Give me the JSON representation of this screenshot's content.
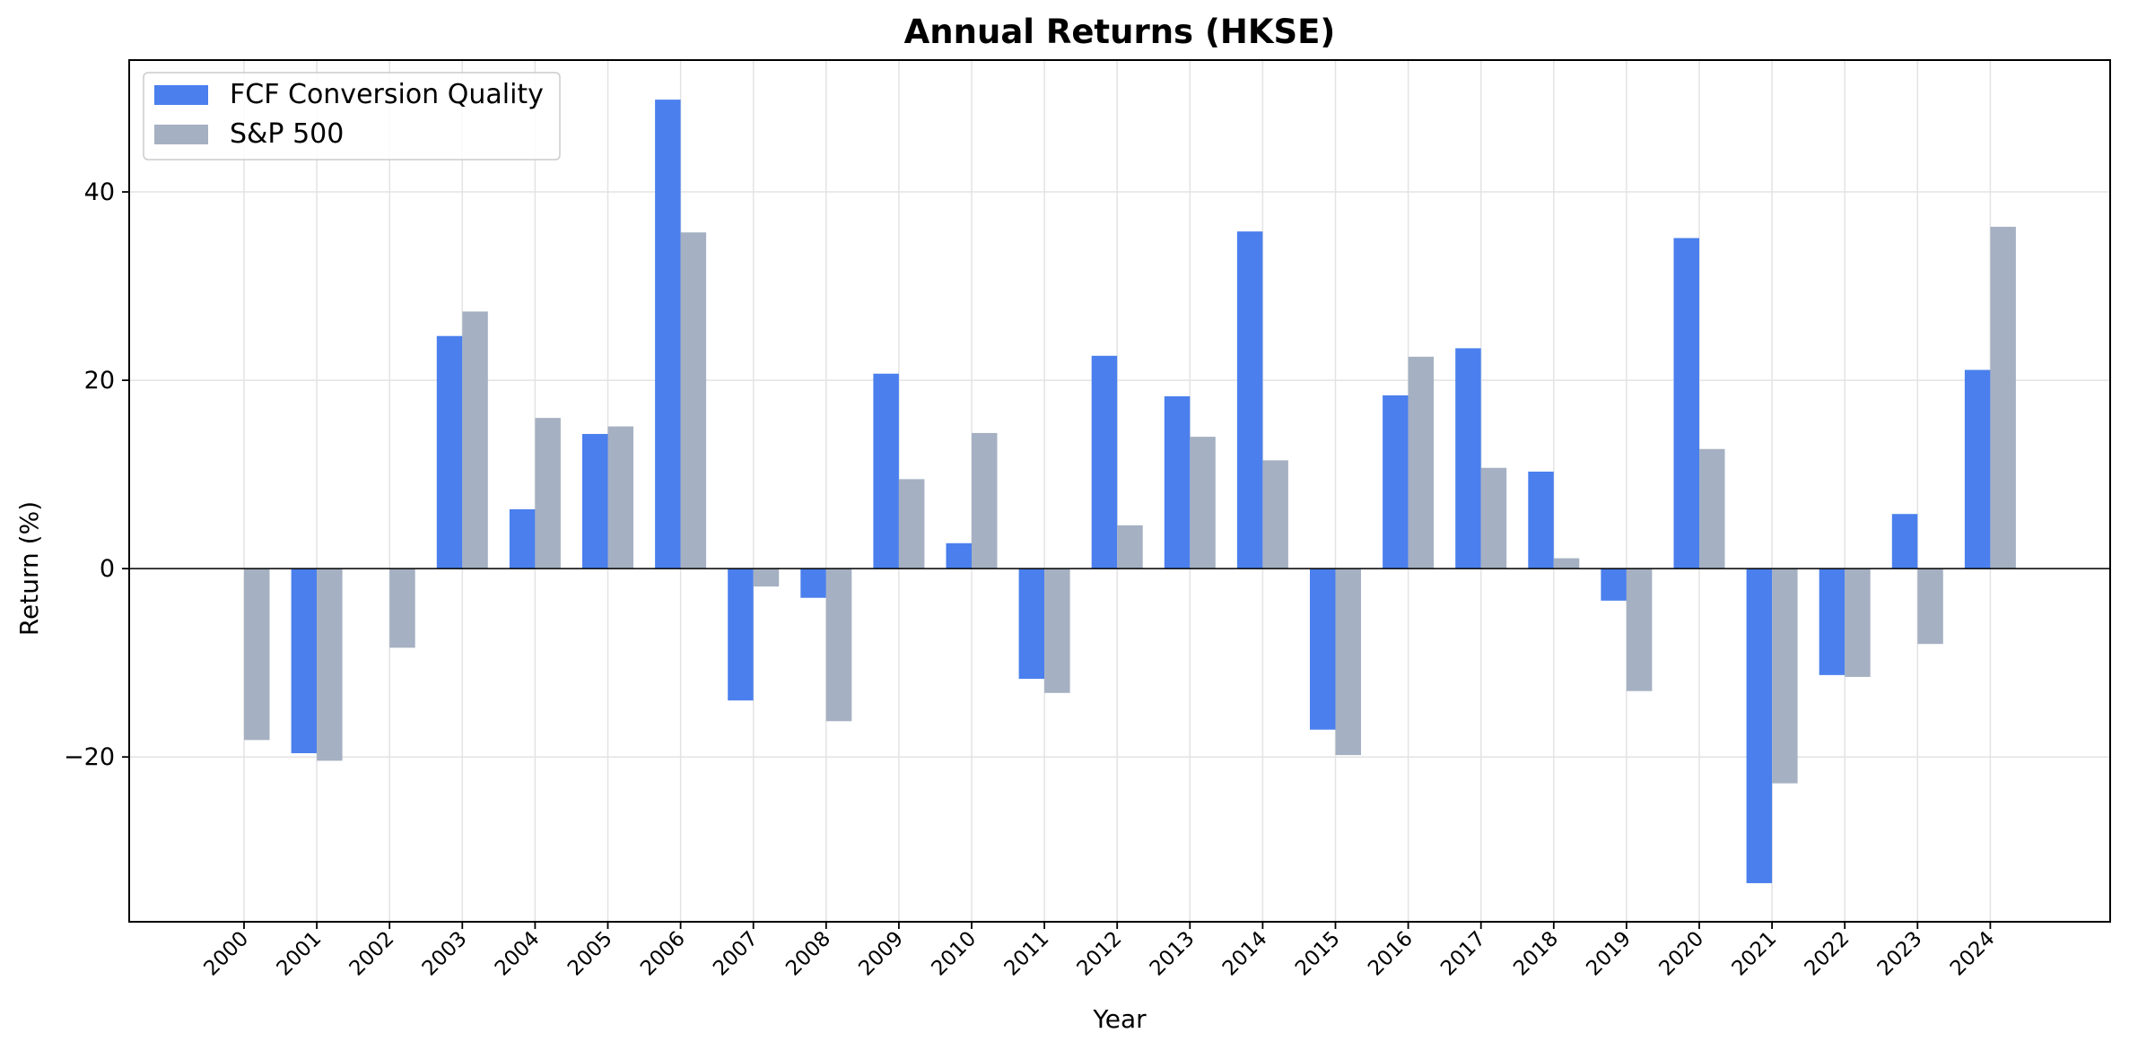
{
  "chart_data": {
    "type": "bar",
    "title": "Annual Returns (HKSE)",
    "xlabel": "Year",
    "ylabel": "Return (%)",
    "ylim": [
      -37.5,
      54
    ],
    "yticks": [
      -20,
      0,
      20,
      40
    ],
    "ytick_labels": [
      "−20",
      "0",
      "20",
      "40"
    ],
    "grid": true,
    "legend_position": "top-left",
    "categories": [
      "2000",
      "2001",
      "2002",
      "2003",
      "2004",
      "2005",
      "2006",
      "2007",
      "2008",
      "2009",
      "2010",
      "2011",
      "2012",
      "2013",
      "2014",
      "2015",
      "2016",
      "2017",
      "2018",
      "2019",
      "2020",
      "2021",
      "2022",
      "2023",
      "2024"
    ],
    "series": [
      {
        "name": "FCF Conversion Quality",
        "color": "#4a7fed",
        "values": [
          null,
          -19.6,
          null,
          24.7,
          6.3,
          14.3,
          49.8,
          -14.0,
          -3.1,
          20.7,
          2.7,
          -11.7,
          22.6,
          18.3,
          35.8,
          -17.1,
          18.4,
          23.4,
          10.3,
          -3.4,
          35.1,
          -33.4,
          -11.3,
          5.8,
          21.1
        ]
      },
      {
        "name": "S&P 500",
        "color": "#a5b0c2",
        "values": [
          -18.2,
          -20.4,
          -8.4,
          27.3,
          16.0,
          15.1,
          35.7,
          -1.9,
          -16.2,
          9.5,
          14.4,
          -13.2,
          4.6,
          14.0,
          11.5,
          -19.8,
          22.5,
          10.7,
          1.1,
          -13.0,
          12.7,
          -22.8,
          -11.5,
          -8.0,
          36.3
        ]
      }
    ]
  }
}
